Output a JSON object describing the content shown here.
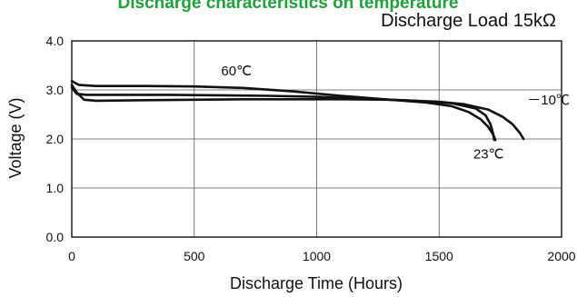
{
  "chart_data": {
    "type": "line",
    "title": "Discharge characteristics on temperature",
    "subtitle": "Discharge Load  15kΩ",
    "xlabel": "Discharge Time (Hours)",
    "ylabel": "Voltage (V)",
    "xlim": [
      0,
      2000
    ],
    "ylim": [
      0,
      4
    ],
    "x_ticks": [
      "0",
      "500",
      "1000",
      "1500",
      "2000"
    ],
    "y_ticks": [
      "0.0",
      "1.0",
      "2.0",
      "3.0",
      "4.0"
    ],
    "grid": true,
    "series": [
      {
        "name": "60℃",
        "x": [
          0,
          30,
          100,
          300,
          500,
          700,
          900,
          1100,
          1300,
          1450,
          1550,
          1620,
          1670,
          1700,
          1720,
          1730
        ],
        "y": [
          3.18,
          3.1,
          3.08,
          3.08,
          3.07,
          3.04,
          2.97,
          2.88,
          2.8,
          2.74,
          2.67,
          2.55,
          2.4,
          2.25,
          2.1,
          1.98
        ]
      },
      {
        "name": "23℃",
        "x": [
          0,
          20,
          60,
          200,
          400,
          600,
          800,
          1000,
          1200,
          1400,
          1550,
          1650,
          1690,
          1710,
          1720,
          1725
        ],
        "y": [
          3.05,
          2.92,
          2.9,
          2.9,
          2.9,
          2.89,
          2.88,
          2.86,
          2.82,
          2.78,
          2.73,
          2.62,
          2.48,
          2.3,
          2.12,
          1.98
        ]
      },
      {
        "name": "－10℃",
        "x": [
          0,
          20,
          50,
          100,
          300,
          500,
          700,
          900,
          1100,
          1300,
          1500,
          1600,
          1700,
          1760,
          1800,
          1830,
          1845
        ],
        "y": [
          3.1,
          2.95,
          2.8,
          2.78,
          2.79,
          2.8,
          2.81,
          2.81,
          2.81,
          2.8,
          2.76,
          2.71,
          2.6,
          2.45,
          2.3,
          2.12,
          2.0
        ]
      }
    ],
    "annotations": [
      {
        "text": "60℃",
        "x": 610,
        "y": 3.3
      },
      {
        "text": "－10℃",
        "x": 1860,
        "y": 2.7
      },
      {
        "text": "23℃",
        "x": 1640,
        "y": 1.6
      }
    ]
  }
}
